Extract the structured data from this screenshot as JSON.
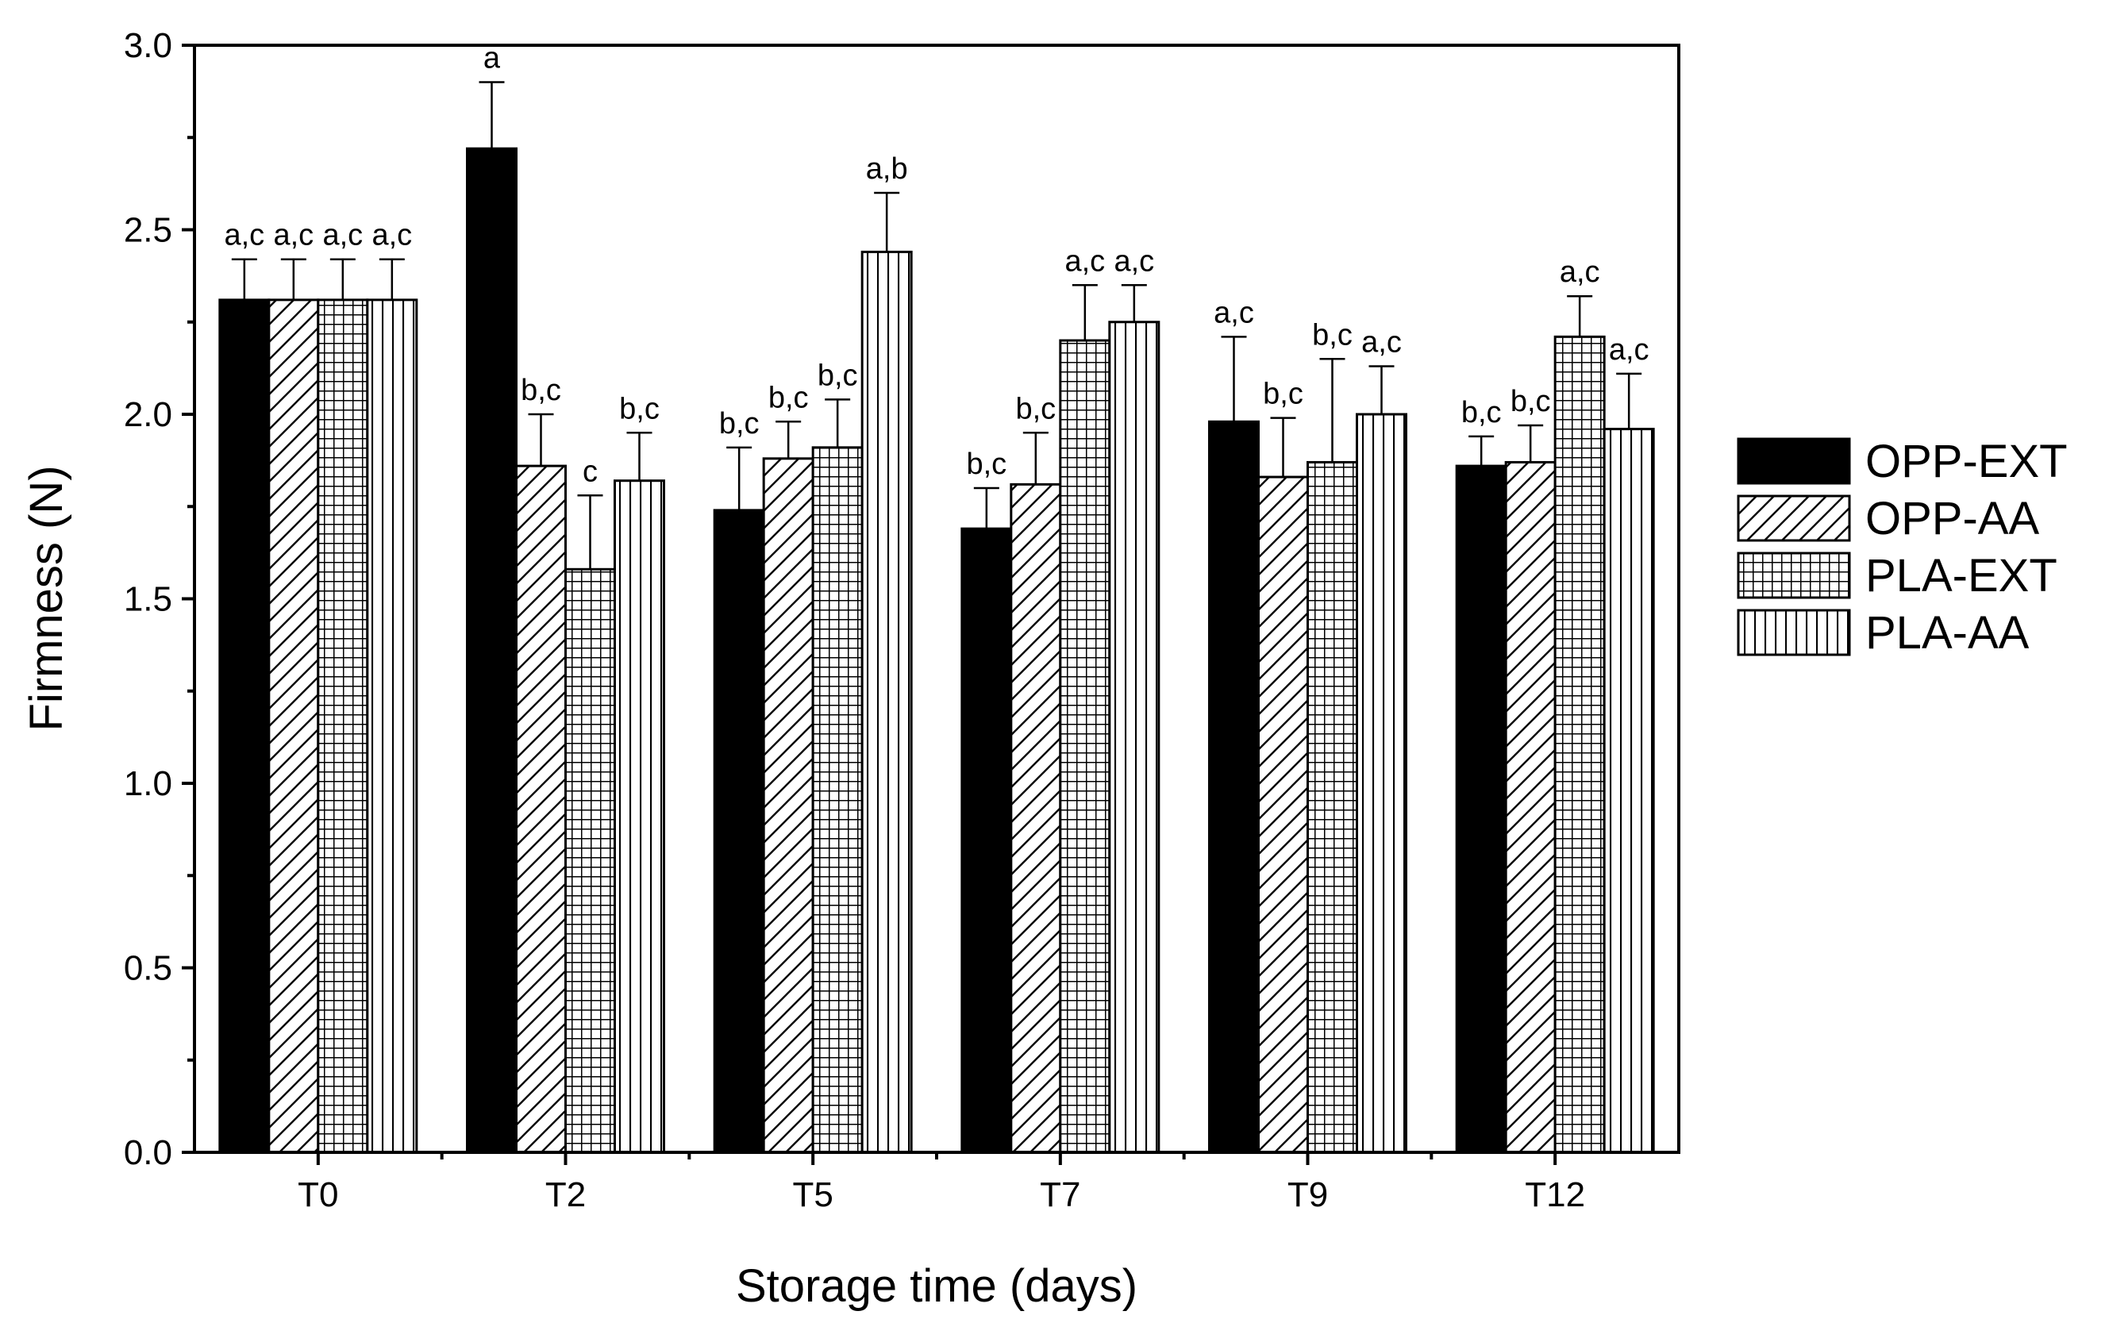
{
  "chart_data": {
    "type": "bar",
    "title": "",
    "xlabel": "Storage time (days)",
    "ylabel": "Firmness (N)",
    "ylim": [
      0,
      3.0
    ],
    "yticks": [
      "0.0",
      "0.5",
      "1.0",
      "1.5",
      "2.0",
      "2.5",
      "3.0"
    ],
    "categories": [
      "T0",
      "T2",
      "T5",
      "T7",
      "T9",
      "T12"
    ],
    "legend_position": "right",
    "series": [
      {
        "name": "OPP-EXT",
        "pattern": "solid",
        "values": [
          2.31,
          2.72,
          1.74,
          1.69,
          1.98,
          1.86
        ],
        "errors": [
          0.11,
          0.18,
          0.17,
          0.11,
          0.23,
          0.08
        ],
        "labels": [
          "a,c",
          "a",
          "b,c",
          "b,c",
          "a,c",
          "b,c"
        ]
      },
      {
        "name": "OPP-AA",
        "pattern": "diagonal",
        "values": [
          2.31,
          1.86,
          1.88,
          1.81,
          1.83,
          1.87
        ],
        "errors": [
          0.11,
          0.14,
          0.1,
          0.14,
          0.16,
          0.1
        ],
        "labels": [
          "a,c",
          "b,c",
          "b,c",
          "b,c",
          "b,c",
          "b,c"
        ]
      },
      {
        "name": "PLA-EXT",
        "pattern": "grid",
        "values": [
          2.31,
          1.58,
          1.91,
          2.2,
          1.87,
          2.21
        ],
        "errors": [
          0.11,
          0.2,
          0.13,
          0.15,
          0.28,
          0.11
        ],
        "labels": [
          "a,c",
          "c",
          "b,c",
          "a,c",
          "b,c",
          "a,c"
        ]
      },
      {
        "name": "PLA-AA",
        "pattern": "vertical",
        "values": [
          2.31,
          1.82,
          2.44,
          2.25,
          2.0,
          1.96
        ],
        "errors": [
          0.11,
          0.13,
          0.16,
          0.1,
          0.13,
          0.15
        ],
        "labels": [
          "a,c",
          "b,c",
          "a,b",
          "a,c",
          "a,c",
          "a,c"
        ]
      }
    ],
    "colors": {
      "bar_stroke": "#000000",
      "solid_fill": "#000000",
      "background": "#ffffff"
    }
  }
}
